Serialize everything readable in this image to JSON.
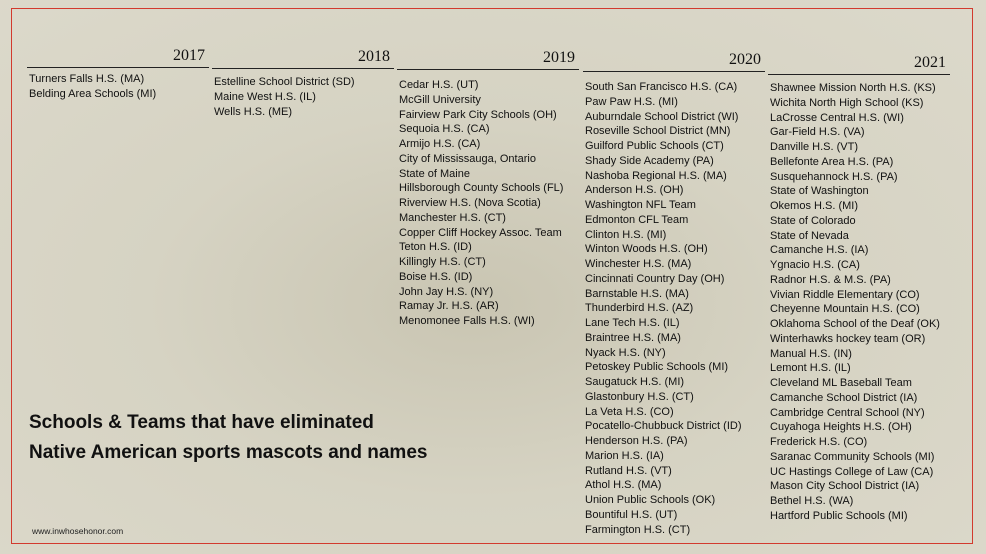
{
  "columns": [
    {
      "year": "2017",
      "items": [
        "Turners Falls H.S. (MA)",
        "Belding Area Schools (MI)"
      ]
    },
    {
      "year": "2018",
      "items": [
        "Estelline School District (SD)",
        "Maine West H.S. (IL)",
        "Wells H.S. (ME)"
      ]
    },
    {
      "year": "2019",
      "items": [
        "Cedar H.S. (UT)",
        "McGill University",
        "Fairview Park City Schools (OH)",
        "Sequoia H.S. (CA)",
        "Armijo H.S. (CA)",
        "City of Mississauga, Ontario",
        "State of Maine",
        "Hillsborough County Schools (FL)",
        "Riverview H.S. (Nova Scotia)",
        "Manchester H.S. (CT)",
        "Copper Cliff Hockey Assoc. Team",
        "Teton H.S. (ID)",
        "Killingly H.S. (CT)",
        "Boise H.S. (ID)",
        "John Jay H.S. (NY)",
        "Ramay Jr. H.S. (AR)",
        "Menomonee Falls H.S. (WI)"
      ]
    },
    {
      "year": "2020",
      "items": [
        "South San Francisco H.S. (CA)",
        "Paw Paw H.S. (MI)",
        "Auburndale School District (WI)",
        "Roseville School District (MN)",
        "Guilford Public Schools (CT)",
        "Shady Side Academy (PA)",
        "Nashoba Regional H.S. (MA)",
        "Anderson H.S. (OH)",
        "Washington NFL Team",
        "Edmonton CFL Team",
        "Clinton H.S. (MI)",
        "Winton Woods H.S. (OH)",
        "Winchester H.S. (MA)",
        "Cincinnati Country Day (OH)",
        "Barnstable H.S. (MA)",
        "Thunderbird H.S. (AZ)",
        "Lane Tech H.S. (IL)",
        "Braintree H.S. (MA)",
        "Nyack H.S. (NY)",
        "Petoskey Public Schools (MI)",
        "Saugatuck H.S. (MI)",
        "Glastonbury H.S. (CT)",
        "La Veta H.S. (CO)",
        "Pocatello-Chubbuck District (ID)",
        "Henderson H.S. (PA)",
        "Marion H.S. (IA)",
        "Rutland H.S. (VT)",
        "Athol H.S. (MA)",
        "Union Public Schools (OK)",
        "Bountiful H.S. (UT)",
        "Farmington H.S. (CT)"
      ]
    },
    {
      "year": "2021",
      "items": [
        "Shawnee Mission North H.S. (KS)",
        "Wichita North High School (KS)",
        "LaCrosse Central H.S. (WI)",
        "Gar-Field H.S. (VA)",
        "Danville H.S. (VT)",
        "Bellefonte Area H.S. (PA)",
        "Susquehannock H.S. (PA)",
        "State of Washington",
        "Okemos H.S. (MI)",
        "State of Colorado",
        "State of Nevada",
        "Camanche H.S. (IA)",
        "Ygnacio H.S. (CA)",
        "Radnor H.S. & M.S. (PA)",
        "Vivian Riddle Elementary (CO)",
        "Cheyenne Mountain H.S. (CO)",
        "Oklahoma School of the Deaf (OK)",
        "Winterhawks hockey team (OR)",
        "Manual H.S. (IN)",
        "Lemont H.S. (IL)",
        "Cleveland ML Baseball Team",
        "Camanche School District (IA)",
        "Cambridge Central School (NY)",
        "Cuyahoga Heights H.S. (OH)",
        "Frederick H.S. (CO)",
        "Saranac Community Schools (MI)",
        "UC Hastings College of Law (CA)",
        "Mason City School District (IA)",
        "Bethel H.S. (WA)",
        "Hartford Public Schools (MI)"
      ]
    }
  ],
  "title": [
    "Schools & Teams that have eliminated",
    "Native American sports mascots and names"
  ],
  "footer": "www.inwhosehonor.com"
}
